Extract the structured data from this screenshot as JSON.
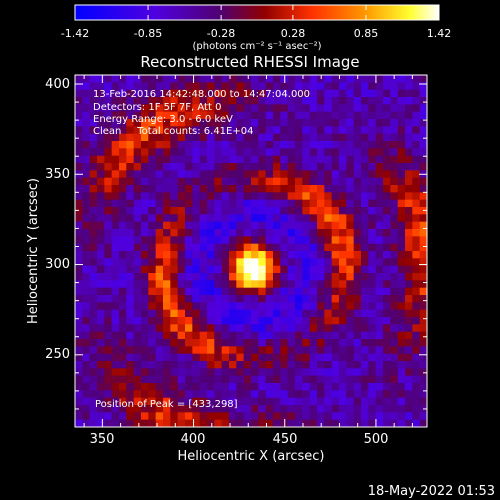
{
  "colorbar": {
    "ticks": [
      "-1.42",
      "-0.85",
      "-0.28",
      "0.28",
      "0.85",
      "1.42"
    ],
    "unit_label": "(photons cm⁻² s⁻¹ asec⁻²)"
  },
  "plot": {
    "title": "Reconstructed RHESSI Image",
    "xlabel": "Heliocentric X (arcsec)",
    "ylabel": "Heliocentric Y (arcsec)",
    "x_ticks": [
      "350",
      "400",
      "450",
      "500"
    ],
    "y_ticks": [
      "250",
      "300",
      "350",
      "400"
    ],
    "info_lines": [
      "13-Feb-2016 14:42:48.000 to 14:47:04.000",
      "Detectors: 1F 5F 7F, Att 0",
      "Energy Range: 3.0 - 6.0 keV",
      "Clean     Total counts: 6.41E+04"
    ],
    "peak_text": "Position of Peak = [433,298]"
  },
  "footer": {
    "timestamp": "18-May-2022 01:53"
  },
  "chart_data": {
    "type": "heatmap",
    "title": "Reconstructed RHESSI Image",
    "xlabel": "Heliocentric X (arcsec)",
    "ylabel": "Heliocentric Y (arcsec)",
    "xlim": [
      335,
      528
    ],
    "ylim": [
      210,
      405
    ],
    "x_ticks": [
      350,
      400,
      450,
      500
    ],
    "y_ticks": [
      250,
      300,
      350,
      400
    ],
    "colorbar_range": [
      -1.42,
      1.42
    ],
    "colorbar_ticks": [
      -1.42,
      -0.85,
      -0.28,
      0.28,
      0.85,
      1.42
    ],
    "colormap": [
      "#0000ff",
      "#6000d0",
      "#600060",
      "#b00000",
      "#ff4000",
      "#ffa000",
      "#ffff00",
      "#ffffff"
    ],
    "peak": [
      433,
      298
    ],
    "features": {
      "core": {
        "center": [
          433,
          298
        ],
        "peak_value": 1.42
      },
      "ring": {
        "radius": 50,
        "value": 0.9
      },
      "outer_ring": {
        "radius": 95,
        "value": 0.55
      },
      "dark_ring": {
        "radius": 28,
        "value": -1.1
      }
    }
  }
}
